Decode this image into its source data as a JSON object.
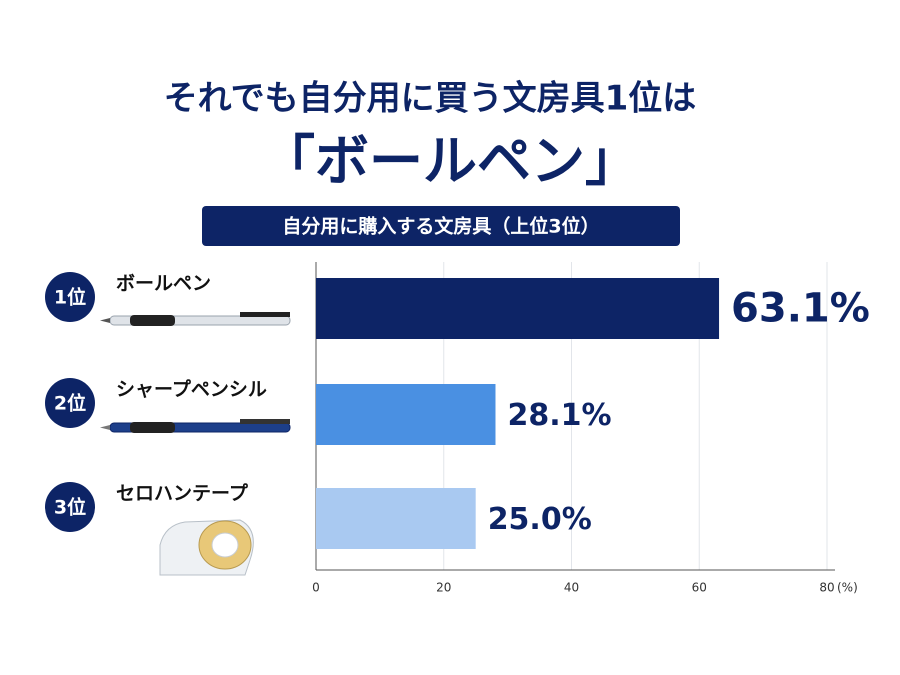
{
  "chart_data": {
    "type": "bar",
    "orientation": "horizontal",
    "title": "それでも自分用に買う文房具1位は",
    "title_highlight": "「ボールペン」",
    "subtitle": "自分用に購入する文房具（上位3位）",
    "ranks": [
      "1位",
      "2位",
      "3位"
    ],
    "categories": [
      "ボールペン",
      "シャープペンシル",
      "セロハンテープ"
    ],
    "values": [
      63.1,
      28.1,
      25.0
    ],
    "value_labels": [
      "63.1%",
      "28.1%",
      "25.0%"
    ],
    "colors": [
      "#0d2466",
      "#4a90e2",
      "#a9c9f1"
    ],
    "xlim": [
      0,
      80
    ],
    "xticks": [
      0,
      20,
      40,
      60,
      80
    ],
    "xlabel": "(%)",
    "grid": true
  }
}
